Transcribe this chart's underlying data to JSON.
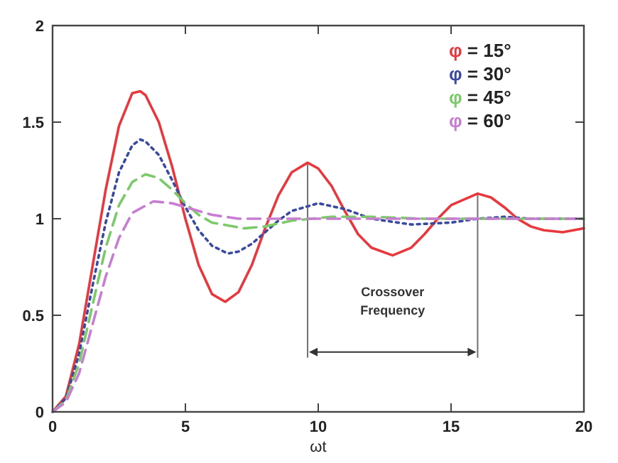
{
  "chart_data": {
    "type": "line",
    "xlabel": "ωt",
    "xlim": [
      0,
      20
    ],
    "ylim": [
      0,
      2
    ],
    "xticks": [
      0,
      5,
      10,
      15,
      20
    ],
    "yticks": [
      0,
      0.5,
      1,
      1.5,
      2
    ],
    "grid": false,
    "legend": "top right",
    "marker": "none",
    "series": [
      {
        "name": "φ = 15°",
        "color": "#e8383d",
        "line_style": "solid",
        "x": [
          0,
          0.5,
          1,
          1.5,
          2,
          2.5,
          3,
          3.3,
          3.5,
          4,
          4.5,
          5,
          5.5,
          6,
          6.5,
          7,
          7.5,
          8,
          8.5,
          9,
          9.6,
          10,
          10.5,
          11,
          11.5,
          12,
          12.8,
          13.5,
          14,
          14.5,
          15,
          16,
          16.5,
          17,
          17.5,
          18,
          18.5,
          19.2,
          20
        ],
        "values": [
          0,
          0.08,
          0.35,
          0.75,
          1.15,
          1.48,
          1.65,
          1.66,
          1.64,
          1.5,
          1.27,
          1.0,
          0.76,
          0.61,
          0.57,
          0.62,
          0.76,
          0.95,
          1.12,
          1.24,
          1.29,
          1.26,
          1.17,
          1.04,
          0.92,
          0.85,
          0.81,
          0.85,
          0.92,
          1.0,
          1.07,
          1.13,
          1.11,
          1.06,
          1.0,
          0.96,
          0.94,
          0.93,
          0.95
        ]
      },
      {
        "name": "φ = 30°",
        "color": "#3a4aa0",
        "line_style": "dotted",
        "x": [
          0,
          0.5,
          1,
          1.5,
          2,
          2.5,
          3,
          3.3,
          3.5,
          4,
          4.5,
          5,
          5.5,
          6,
          6.6,
          7,
          7.5,
          8,
          8.5,
          9,
          10,
          11,
          12,
          13.5,
          15,
          16,
          17,
          18,
          19,
          20
        ],
        "values": [
          0,
          0.07,
          0.3,
          0.65,
          0.98,
          1.24,
          1.38,
          1.41,
          1.4,
          1.33,
          1.2,
          1.06,
          0.94,
          0.86,
          0.82,
          0.83,
          0.87,
          0.93,
          0.99,
          1.04,
          1.08,
          1.05,
          1.0,
          0.97,
          0.98,
          1.0,
          1.01,
          1.0,
          1.0,
          1.0
        ]
      },
      {
        "name": "φ = 45°",
        "color": "#7cc96a",
        "line_style": "dashed",
        "x": [
          0,
          0.5,
          1,
          1.5,
          2,
          2.5,
          3,
          3.5,
          4,
          4.5,
          5,
          5.5,
          6,
          7.2,
          8,
          9,
          10.5,
          12,
          14,
          16,
          18,
          20
        ],
        "values": [
          0,
          0.06,
          0.25,
          0.55,
          0.85,
          1.07,
          1.19,
          1.23,
          1.21,
          1.15,
          1.08,
          1.02,
          0.98,
          0.95,
          0.96,
          0.99,
          1.01,
          1.01,
          1.0,
          1.0,
          1.0,
          1.0
        ]
      },
      {
        "name": "φ = 60°",
        "color": "#c77dd1",
        "line_style": "dashed",
        "x": [
          0,
          0.5,
          1,
          1.5,
          2,
          2.5,
          3,
          3.8,
          4.5,
          5,
          6,
          7,
          8,
          10,
          12,
          14,
          16,
          18,
          20
        ],
        "values": [
          0,
          0.05,
          0.2,
          0.45,
          0.7,
          0.9,
          1.03,
          1.09,
          1.08,
          1.06,
          1.02,
          1.0,
          1.0,
          1.0,
          1.0,
          1.0,
          1.0,
          1.0,
          1.0
        ]
      }
    ],
    "ref_lines": [
      {
        "axis": "x",
        "value": 9.6,
        "color": "#707070"
      },
      {
        "axis": "x",
        "value": 16,
        "color": "#707070"
      }
    ],
    "annotations": [
      "Crossover Frequency"
    ]
  }
}
